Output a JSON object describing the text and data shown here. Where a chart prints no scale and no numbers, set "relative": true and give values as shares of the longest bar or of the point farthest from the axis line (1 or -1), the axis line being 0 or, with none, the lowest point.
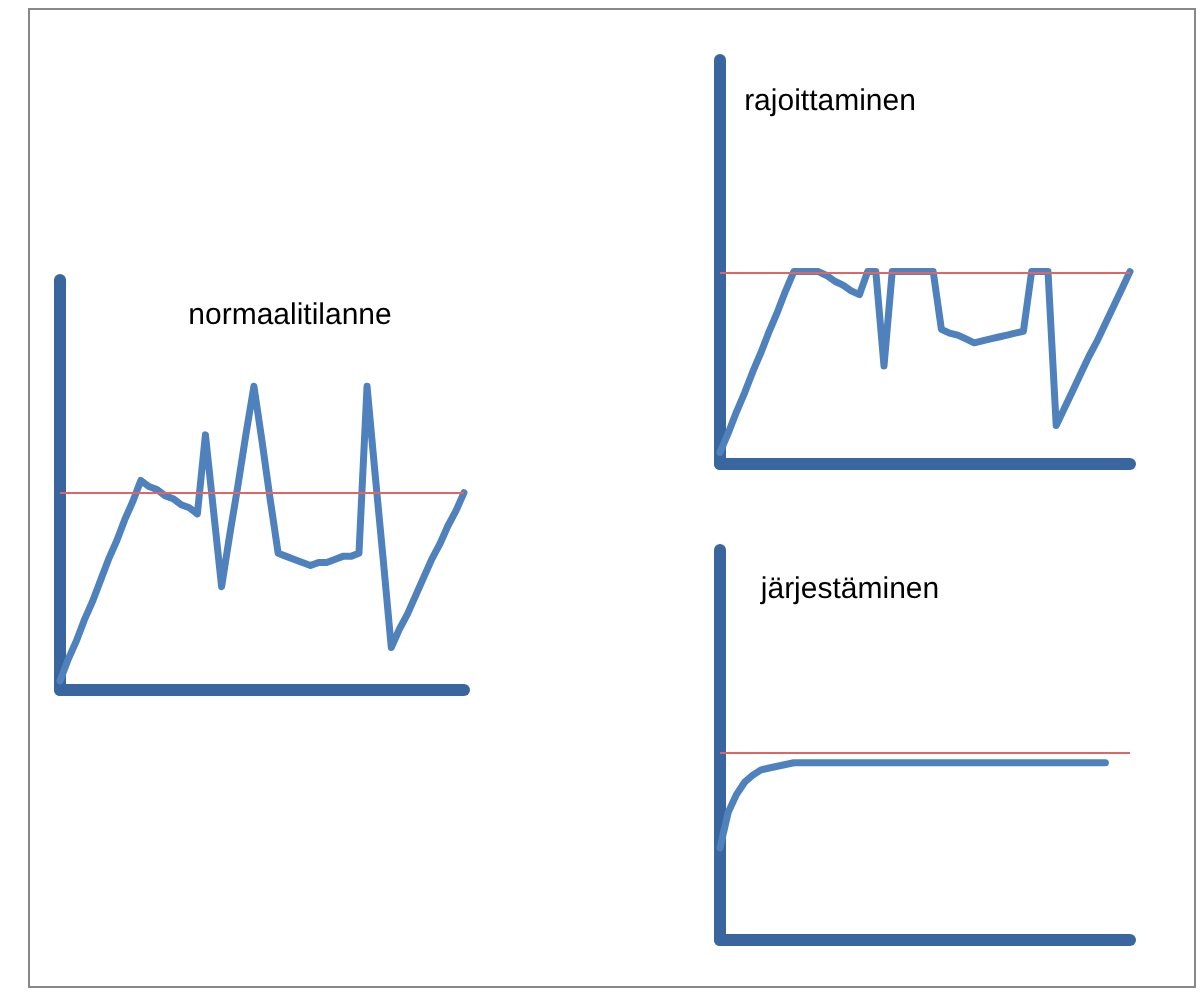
{
  "chart_data": [
    {
      "type": "line",
      "title": "normaalitilanne",
      "relative": true,
      "marker": "none",
      "line_style": "solid",
      "categories": [
        null,
        null,
        null,
        null,
        null,
        null,
        null,
        null,
        null,
        null,
        null,
        null,
        null,
        null,
        null,
        null,
        null,
        null,
        null,
        null,
        null,
        null,
        null,
        null,
        null,
        null,
        null,
        null,
        null,
        null,
        null,
        null,
        null,
        null,
        null,
        null,
        null,
        null,
        null,
        null,
        null,
        null,
        null,
        null,
        null,
        null,
        null,
        null,
        null,
        null,
        null
      ],
      "series": [
        {
          "color": "#4f81bd",
          "values": [
            0.03,
            0.1,
            0.16,
            0.23,
            0.29,
            0.36,
            0.43,
            0.49,
            0.56,
            0.62,
            0.69,
            0.67,
            0.66,
            0.64,
            0.63,
            0.61,
            0.6,
            0.58,
            0.84,
            0.59,
            0.34,
            0.51,
            0.67,
            0.84,
            1,
            0.82,
            0.63,
            0.45,
            0.44,
            0.43,
            0.42,
            0.41,
            0.42,
            0.42,
            0.43,
            0.44,
            0.44,
            0.45,
            1,
            0.71,
            0.43,
            0.14,
            0.2,
            0.25,
            0.31,
            0.37,
            0.43,
            0.48,
            0.54,
            0.59,
            0.65
          ]
        }
      ],
      "ref_lines": [
        {
          "axis": "y",
          "value": 0.65,
          "color": "#e06666"
        }
      ]
    },
    {
      "type": "line",
      "title": "rajoittaminen",
      "relative": true,
      "marker": "none",
      "line_style": "solid",
      "categories": [
        null,
        null,
        null,
        null,
        null,
        null,
        null,
        null,
        null,
        null,
        null,
        null,
        null,
        null,
        null,
        null,
        null,
        null,
        null,
        null,
        null,
        null,
        null,
        null,
        null,
        null,
        null,
        null,
        null,
        null,
        null,
        null,
        null,
        null,
        null,
        null,
        null,
        null,
        null,
        null,
        null,
        null,
        null,
        null,
        null,
        null,
        null,
        null,
        null,
        null,
        null
      ],
      "series": [
        {
          "color": "#4f81bd",
          "values": [
            0.06,
            0.16,
            0.27,
            0.37,
            0.48,
            0.58,
            0.69,
            0.79,
            0.9,
            1,
            1,
            1,
            1,
            0.98,
            0.95,
            0.93,
            0.9,
            0.88,
            1,
            1,
            0.51,
            1,
            1,
            1,
            1,
            1,
            1,
            0.7,
            0.68,
            0.67,
            0.65,
            0.63,
            0.64,
            0.65,
            0.66,
            0.67,
            0.68,
            0.69,
            1,
            1,
            1,
            0.2,
            0.29,
            0.38,
            0.47,
            0.56,
            0.64,
            0.73,
            0.82,
            0.91,
            1
          ]
        }
      ],
      "ref_lines": [
        {
          "axis": "y",
          "value": 1,
          "color": "#e06666"
        }
      ]
    },
    {
      "type": "line",
      "title": "järjestäminen",
      "relative": true,
      "marker": "none",
      "line_style": "solid",
      "categories": [
        null,
        null,
        null,
        null,
        null,
        null,
        null,
        null,
        null,
        null,
        null,
        null,
        null,
        null,
        null,
        null,
        null,
        null,
        null,
        null,
        null,
        null,
        null,
        null,
        null,
        null,
        null,
        null,
        null,
        null,
        null,
        null,
        null,
        null,
        null,
        null,
        null,
        null,
        null,
        null,
        null,
        null,
        null,
        null,
        null,
        null,
        null,
        null,
        null,
        null,
        null
      ],
      "series": [
        {
          "color": "#4f81bd",
          "values": [
            0.52,
            0.72,
            0.82,
            0.89,
            0.93,
            0.96,
            0.97,
            0.98,
            0.99,
            1,
            1,
            1,
            1,
            1,
            1,
            1,
            1,
            1,
            1,
            1,
            1,
            1,
            1,
            1,
            1,
            1,
            1,
            1,
            1,
            1,
            1,
            1,
            1,
            1,
            1,
            1,
            1,
            1,
            1,
            1,
            1,
            1,
            1,
            1,
            1,
            1,
            1,
            1,
            null,
            null,
            null
          ]
        }
      ],
      "ref_lines": [
        {
          "axis": "y",
          "value": 1.06,
          "color": "#e06666"
        }
      ]
    }
  ]
}
